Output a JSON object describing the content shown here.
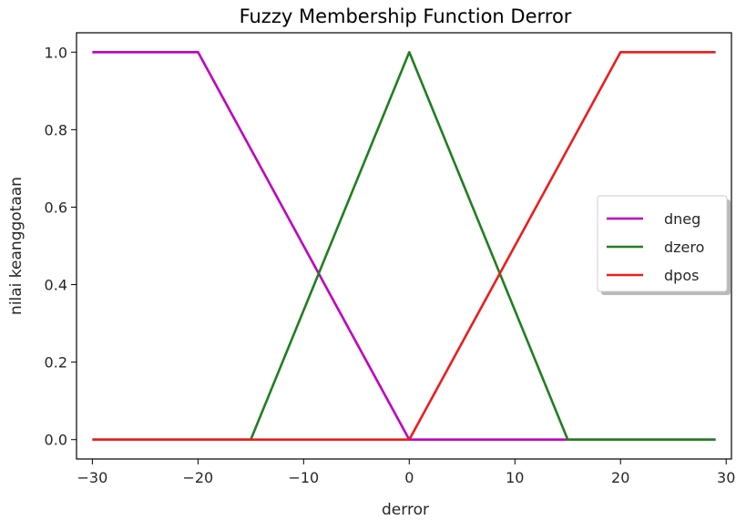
{
  "chart_data": {
    "type": "line",
    "title": "Fuzzy Membership Function Derror",
    "xlabel": "derror",
    "ylabel": "nilai keanggotaan",
    "xlim": [
      -31.5,
      30.5
    ],
    "ylim": [
      -0.05,
      1.05
    ],
    "x_ticks": [
      -30,
      -20,
      -10,
      0,
      10,
      20,
      30
    ],
    "x_tick_labels": [
      "−30",
      "−20",
      "−10",
      "0",
      "10",
      "20",
      "30"
    ],
    "y_ticks": [
      0.0,
      0.2,
      0.4,
      0.6,
      0.8,
      1.0
    ],
    "y_tick_labels": [
      "0.0",
      "0.2",
      "0.4",
      "0.6",
      "0.8",
      "1.0"
    ],
    "grid": false,
    "legend_position": "center-right",
    "series": [
      {
        "name": "dneg",
        "color": "#bf00bf",
        "x": [
          -30,
          -20,
          0,
          29
        ],
        "y": [
          1,
          1,
          0,
          0
        ]
      },
      {
        "name": "dzero",
        "color": "#1f7f1f",
        "x": [
          -30,
          -15,
          0,
          15,
          29
        ],
        "y": [
          0,
          0,
          1,
          0,
          0
        ]
      },
      {
        "name": "dpos",
        "color": "#ee1c1c",
        "x": [
          -30,
          0,
          20,
          29
        ],
        "y": [
          0,
          0,
          1,
          1
        ]
      }
    ]
  }
}
